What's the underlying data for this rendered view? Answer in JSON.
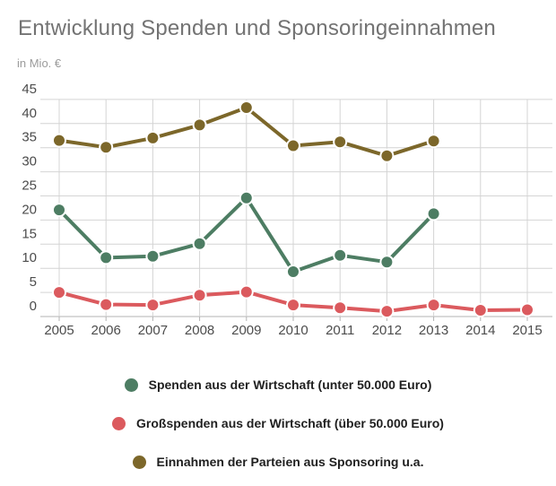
{
  "title": "Entwicklung Spenden und Sponsoringeinnahmen",
  "subtitle": "in Mio. €",
  "chart_data": {
    "type": "line",
    "title": "Entwicklung Spenden und Sponsoringeinnahmen",
    "ylabel": "in Mio. €",
    "x": [
      2005,
      2006,
      2007,
      2008,
      2009,
      2010,
      2011,
      2012,
      2013,
      2014,
      2015
    ],
    "series": [
      {
        "name": "Spenden aus der Wirtschaft (unter 50.000 Euro)",
        "color": "#4d7d63",
        "values": [
          22.1,
          12.2,
          12.5,
          15.1,
          24.6,
          9.3,
          12.7,
          11.3,
          21.3,
          null,
          null
        ]
      },
      {
        "name": "Großspenden aus der Wirtschaft (über 50.000 Euro)",
        "color": "#db5a5e",
        "values": [
          5.0,
          2.5,
          2.4,
          4.4,
          5.1,
          2.4,
          1.8,
          1.1,
          2.4,
          1.3,
          1.4
        ]
      },
      {
        "name": "Einnahmen der Parteien aus Sponsoring u.a.",
        "color": "#7c672a",
        "values": [
          36.5,
          35.1,
          37.0,
          39.7,
          43.3,
          35.4,
          36.2,
          33.3,
          36.4,
          null,
          null
        ]
      }
    ],
    "ylim": [
      0,
      45
    ],
    "yticks": [
      0,
      5,
      10,
      15,
      20,
      25,
      30,
      35,
      40,
      45
    ],
    "grid": true,
    "legend_position": "bottom"
  },
  "colors": {
    "title_text": "#737373",
    "subtitle_text": "#9b9b9b",
    "axis_text": "#4c4c4c",
    "gridline": "#d4d4d4",
    "baseline": "#b3b3b3",
    "legend_text": "#1f1f1f"
  }
}
